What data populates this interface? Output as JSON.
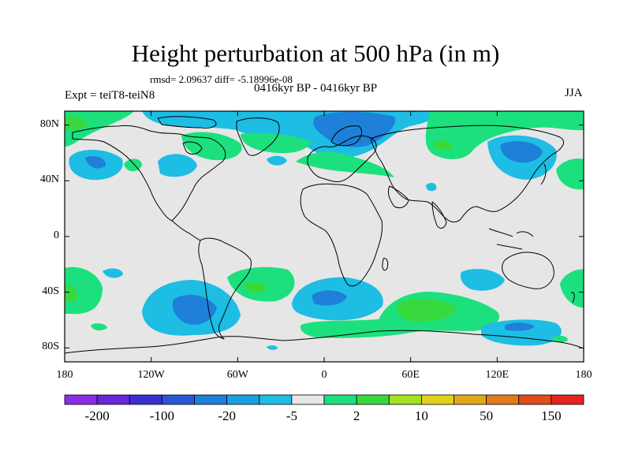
{
  "title": "Height perturbation at 500 hPa (in m)",
  "stats": "rmsd= 2.09637 diff= -5.18996e-08",
  "period": "0416kyr BP - 0416kyr BP",
  "experiment": "Expt = teiT8-teiN8",
  "season": "JJA",
  "axes": {
    "lat_labels": [
      {
        "value": 80,
        "text": "80N"
      },
      {
        "value": 40,
        "text": "40N"
      },
      {
        "value": 0,
        "text": "0"
      },
      {
        "value": -40,
        "text": "40S"
      },
      {
        "value": -80,
        "text": "80S"
      }
    ],
    "lon_labels": [
      {
        "value": -180,
        "text": "180"
      },
      {
        "value": -120,
        "text": "120W"
      },
      {
        "value": -60,
        "text": "60W"
      },
      {
        "value": 0,
        "text": "0"
      },
      {
        "value": 60,
        "text": "60E"
      },
      {
        "value": 120,
        "text": "120E"
      },
      {
        "value": 180,
        "text": "180"
      }
    ]
  },
  "colorbar": {
    "colors": [
      "#8c2de6",
      "#6a26d9",
      "#3b2fd1",
      "#2a57d6",
      "#1e80d8",
      "#1aa0e0",
      "#1dbde4",
      "#e6e6e6",
      "#1ce07e",
      "#38d93e",
      "#a6e022",
      "#e0d21d",
      "#e0a81a",
      "#e07a1c",
      "#e04d1a",
      "#e52420"
    ],
    "tick_labels": [
      {
        "boundary": 1,
        "text": "-200"
      },
      {
        "boundary": 3,
        "text": "-100"
      },
      {
        "boundary": 5,
        "text": "-20"
      },
      {
        "boundary": 7,
        "text": "-5"
      },
      {
        "boundary": 9,
        "text": "2"
      },
      {
        "boundary": 11,
        "text": "10"
      },
      {
        "boundary": 13,
        "text": "50"
      },
      {
        "boundary": 15,
        "text": "150"
      }
    ]
  }
}
